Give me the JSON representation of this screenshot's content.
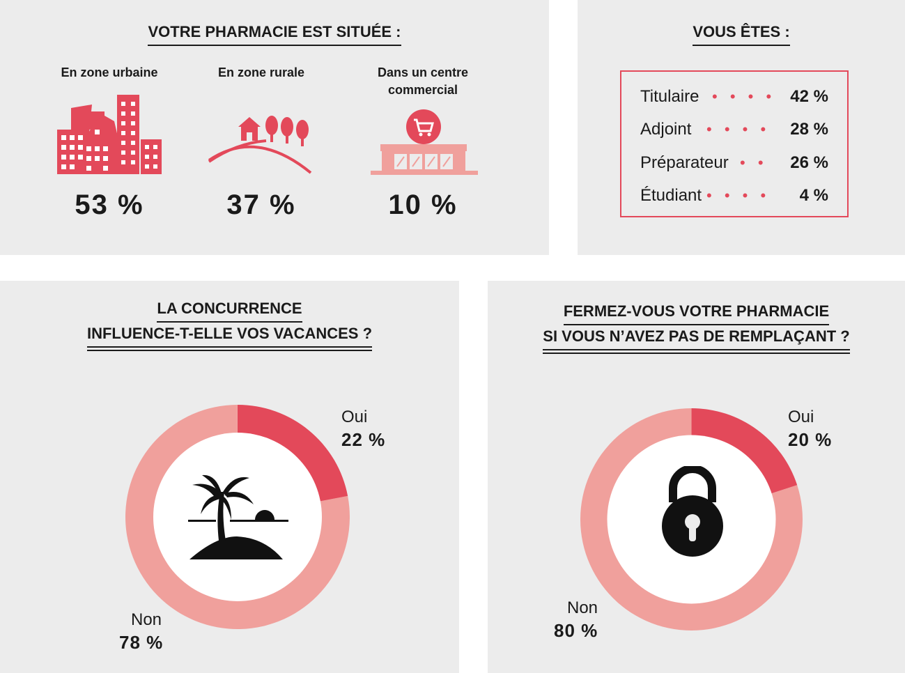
{
  "colors": {
    "accent": "#e3495a",
    "light": "#f0a09c",
    "panel": "#ececec",
    "dark": "#1a1a1a"
  },
  "location": {
    "title": "VOTRE PHARMACIE EST SITUÉE :",
    "items": [
      {
        "label_lines": [
          "En zone urbaine"
        ],
        "value": "53 %",
        "icon": "city-buildings-icon"
      },
      {
        "label_lines": [
          "En zone rurale"
        ],
        "value": "37 %",
        "icon": "rural-house-trees-icon"
      },
      {
        "label_lines": [
          "Dans un centre",
          "commercial"
        ],
        "value": "10 %",
        "icon": "shopping-center-cart-icon"
      }
    ]
  },
  "roles": {
    "title": "VOUS ÊTES :",
    "dots": "• • • •",
    "items": [
      {
        "label": "Titulaire",
        "value": "42 %"
      },
      {
        "label": "Adjoint",
        "value": "28 %"
      },
      {
        "label": "Préparateur",
        "value": "26 %"
      },
      {
        "label": "Étudiant",
        "value": "4 %"
      }
    ]
  },
  "competition": {
    "title_lines": [
      "LA CONCURRENCE",
      "INFLUENCE-T-ELLE VOS VACANCES ?"
    ],
    "icon": "palm-island-icon",
    "yes": {
      "label": "Oui",
      "value": "22 %"
    },
    "no": {
      "label": "Non",
      "value": "78 %"
    }
  },
  "closing": {
    "title_lines": [
      "FERMEZ-VOUS VOTRE PHARMACIE",
      "SI VOUS N’AVEZ PAS DE REMPLAÇANT ?"
    ],
    "icon": "padlock-icon",
    "yes": {
      "label": "Oui",
      "value": "20 %"
    },
    "no": {
      "label": "Non",
      "value": "80 %"
    }
  },
  "chart_data": [
    {
      "type": "bar",
      "categories": [
        "En zone urbaine",
        "En zone rurale",
        "Dans un centre commercial"
      ],
      "values": [
        53,
        37,
        10
      ],
      "title": "VOTRE PHARMACIE EST SITUÉE :"
    },
    {
      "type": "table",
      "categories": [
        "Titulaire",
        "Adjoint",
        "Préparateur",
        "Étudiant"
      ],
      "values": [
        42,
        28,
        26,
        4
      ],
      "title": "VOUS ÊTES :"
    },
    {
      "type": "pie",
      "categories": [
        "Oui",
        "Non"
      ],
      "values": [
        22,
        78
      ],
      "title": "LA CONCURRENCE INFLUENCE-T-ELLE VOS VACANCES ?"
    },
    {
      "type": "pie",
      "categories": [
        "Oui",
        "Non"
      ],
      "values": [
        20,
        80
      ],
      "title": "FERMEZ-VOUS VOTRE PHARMACIE SI VOUS N’AVEZ PAS DE REMPLAÇANT ?"
    }
  ]
}
